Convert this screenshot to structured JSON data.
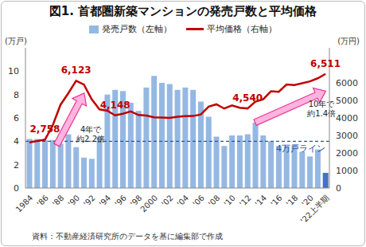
{
  "chart_data": {
    "type": "bar",
    "title": "図1. 首都圏新築マンションの発売戸数と平均価格",
    "source": "資料：不動産経済研究所のデータを基に編集部で作成",
    "y_label": "(万戸)",
    "y2_label": "(万円)",
    "categories": [
      "1984",
      null,
      "'86",
      null,
      "'88",
      null,
      "'90",
      null,
      "'92",
      null,
      "'94",
      null,
      "'96",
      null,
      "'98",
      null,
      "2000",
      null,
      "'02",
      null,
      "'04",
      null,
      "'06",
      null,
      "'08",
      null,
      "'10",
      null,
      "'12",
      null,
      "'14",
      null,
      "'16",
      null,
      "'18",
      null,
      "'20",
      null,
      "'22上半期"
    ],
    "series": [
      {
        "name": "発売戸数（左軸）",
        "type": "bar",
        "color": "#95b8e3",
        "colors": [
          "#95b8e3",
          "#95b8e3",
          "#95b8e3",
          "#95b8e3",
          "#95b8e3",
          "#95b8e3",
          "#95b8e3",
          "#95b8e3",
          "#95b8e3",
          "#95b8e3",
          "#95b8e3",
          "#95b8e3",
          "#95b8e3",
          "#95b8e3",
          "#95b8e3",
          "#95b8e3",
          "#95b8e3",
          "#95b8e3",
          "#95b8e3",
          "#95b8e3",
          "#95b8e3",
          "#95b8e3",
          "#95b8e3",
          "#95b8e3",
          "#95b8e3",
          "#95b8e3",
          "#95b8e3",
          "#95b8e3",
          "#95b8e3",
          "#95b8e3",
          "#95b8e3",
          "#95b8e3",
          "#95b8e3",
          "#95b8e3",
          "#95b8e3",
          "#95b8e3",
          "#95b8e3",
          "#95b8e3",
          "#4472c4"
        ],
        "values": [
          4.2,
          4.2,
          4.1,
          4.1,
          3.8,
          4.6,
          3.5,
          2.6,
          2.5,
          4.4,
          8.0,
          8.4,
          8.3,
          7.3,
          6.6,
          8.6,
          9.6,
          9.0,
          8.9,
          8.4,
          8.6,
          8.4,
          7.4,
          6.1,
          4.4,
          3.6,
          4.5,
          4.5,
          4.6,
          5.6,
          4.5,
          4.0,
          3.6,
          3.6,
          3.7,
          3.1,
          2.7,
          3.3,
          1.3
        ]
      },
      {
        "name": "平均価格（右軸）",
        "type": "line",
        "axis": "y2",
        "color": "#c00000",
        "values": [
          2600,
          2683,
          2758,
          3579,
          4753,
          5411,
          6123,
          5900,
          5066,
          4488,
          4409,
          4148,
          4238,
          4374,
          4168,
          4138,
          4034,
          4026,
          4003,
          4069,
          4104,
          4108,
          4200,
          4644,
          4775,
          4535,
          4716,
          4578,
          4540,
          4929,
          5060,
          5518,
          5490,
          5908,
          5871,
          5980,
          6083,
          6260,
          6511
        ],
        "value_labels": [
          null,
          null,
          "2,758",
          null,
          null,
          null,
          "6,123",
          null,
          null,
          null,
          null,
          "4,148",
          null,
          null,
          null,
          null,
          null,
          null,
          null,
          null,
          null,
          null,
          null,
          null,
          null,
          null,
          null,
          null,
          "4,540",
          null,
          null,
          null,
          null,
          null,
          null,
          null,
          null,
          null,
          "6,511"
        ]
      }
    ],
    "ylim": [
      0,
      12
    ],
    "yticks": [
      0,
      2,
      4,
      6,
      8,
      10
    ],
    "y2lim": [
      0,
      8000
    ],
    "y2ticks": [
      0,
      1000,
      2000,
      3000,
      4000,
      5000,
      6000
    ],
    "grid": false,
    "legend": "top",
    "reference_lines": [
      {
        "value": 4,
        "label": "4万戸ライン",
        "color": "#2f5597",
        "line_style": "dashed"
      }
    ],
    "annotations": [
      {
        "text": "4年で\n約2.2倍",
        "from": "'86",
        "to": "'90"
      },
      {
        "text": "10年で\n約1.4倍",
        "from": "'12",
        "to": "'22上半期"
      }
    ]
  }
}
